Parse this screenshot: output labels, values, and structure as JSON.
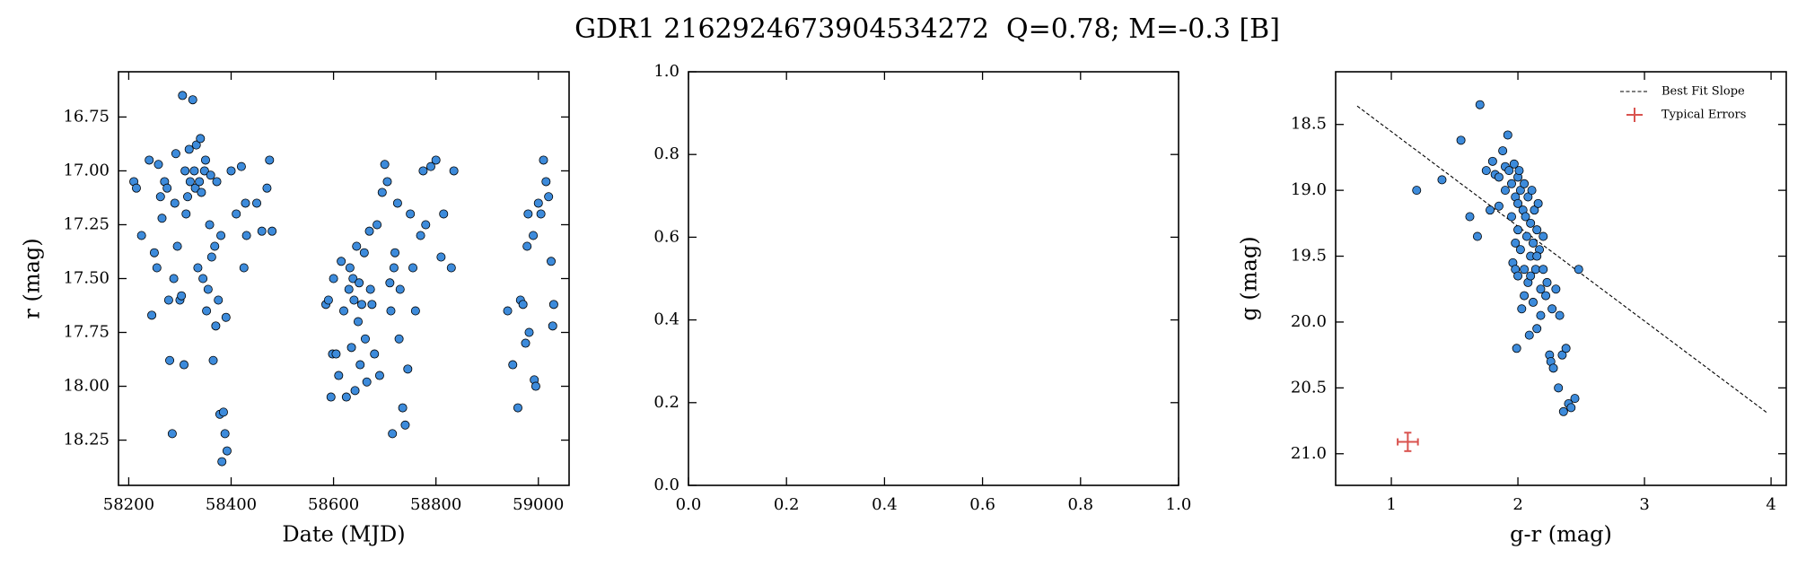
{
  "title": "GDR1 2162924673904534272  Q=0.78; M=-0.3 [B]",
  "chart_data": [
    {
      "type": "scatter",
      "xlabel": "Date (MJD)",
      "ylabel": "r (mag)",
      "color": "#3d8bdb",
      "xlim": [
        58180,
        59060
      ],
      "ylim": [
        18.46,
        16.54
      ],
      "xticks": [
        58200,
        58400,
        58600,
        58800,
        59000
      ],
      "yticks": [
        16.75,
        {
          "value": 17,
          "label": "17.00"
        },
        17.25,
        {
          "value": 17.5,
          "label": "17.50"
        },
        17.75,
        {
          "value": 18,
          "label": "18.00"
        },
        18.25
      ],
      "x": [
        58210,
        58215,
        58225,
        58240,
        58245,
        58250,
        58255,
        58258,
        58262,
        58265,
        58270,
        58275,
        58278,
        58280,
        58285,
        58288,
        58290,
        58292,
        58295,
        58300,
        58303,
        58305,
        58308,
        58310,
        58312,
        58315,
        58318,
        58320,
        58325,
        58328,
        58330,
        58332,
        58335,
        58338,
        58340,
        58342,
        58345,
        58348,
        58350,
        58352,
        58355,
        58358,
        58360,
        58362,
        58365,
        58368,
        58370,
        58372,
        58375,
        58378,
        58380,
        58382,
        58385,
        58388,
        58390,
        58392,
        58400,
        58410,
        58420,
        58425,
        58428,
        58430,
        58450,
        58460,
        58470,
        58475,
        58480,
        58585,
        58590,
        58595,
        58598,
        58600,
        58605,
        58610,
        58615,
        58620,
        58625,
        58630,
        58632,
        58635,
        58638,
        58640,
        58642,
        58645,
        58648,
        58650,
        58652,
        58655,
        58660,
        58662,
        58665,
        58670,
        58672,
        58675,
        58680,
        58685,
        58690,
        58695,
        58700,
        58705,
        58710,
        58712,
        58715,
        58718,
        58720,
        58725,
        58728,
        58730,
        58735,
        58740,
        58745,
        58750,
        58755,
        58760,
        58770,
        58775,
        58780,
        58790,
        58800,
        58810,
        58815,
        58830,
        58835,
        58940,
        58950,
        58960,
        58965,
        58970,
        58975,
        58978,
        58980,
        58982,
        58990,
        58992,
        58995,
        59000,
        59005,
        59010,
        59015,
        59020,
        59025,
        59028,
        59030
      ],
      "values": [
        17.05,
        17.08,
        17.3,
        16.95,
        17.67,
        17.38,
        17.45,
        16.97,
        17.12,
        17.22,
        17.05,
        17.08,
        17.6,
        17.88,
        18.22,
        17.5,
        17.15,
        16.92,
        17.35,
        17.6,
        17.58,
        16.65,
        17.9,
        17.0,
        17.2,
        17.12,
        16.9,
        17.05,
        16.67,
        17.0,
        17.08,
        16.88,
        17.45,
        17.05,
        16.85,
        17.1,
        17.5,
        17.0,
        16.95,
        17.65,
        17.55,
        17.25,
        17.02,
        17.4,
        17.88,
        17.35,
        17.72,
        17.05,
        17.6,
        18.13,
        17.3,
        18.35,
        18.12,
        18.22,
        17.68,
        18.3,
        17.0,
        17.2,
        16.98,
        17.45,
        17.15,
        17.3,
        17.15,
        17.28,
        17.08,
        16.95,
        17.28,
        17.62,
        17.6,
        18.05,
        17.85,
        17.5,
        17.85,
        17.95,
        17.42,
        17.65,
        18.05,
        17.55,
        17.45,
        17.82,
        17.5,
        17.6,
        18.02,
        17.35,
        17.7,
        17.52,
        17.9,
        17.62,
        17.38,
        17.78,
        17.98,
        17.28,
        17.55,
        17.62,
        17.85,
        17.25,
        17.95,
        17.1,
        16.97,
        17.05,
        17.52,
        17.65,
        18.22,
        17.45,
        17.38,
        17.15,
        17.78,
        17.55,
        18.1,
        18.18,
        17.92,
        17.2,
        17.45,
        17.65,
        17.3,
        17.0,
        17.25,
        16.98,
        16.95,
        17.4,
        17.2,
        17.45,
        17.0,
        17.65,
        17.9,
        18.1,
        17.6,
        17.62,
        17.8,
        17.35,
        17.2,
        17.75,
        17.3,
        17.97,
        18.0,
        17.15,
        17.2,
        16.95,
        17.05,
        17.12,
        17.42,
        17.72,
        17.62
      ]
    },
    {
      "type": "empty",
      "xlim": [
        0,
        1
      ],
      "ylim": [
        0,
        1
      ],
      "xticks": [
        {
          "value": 0,
          "label": "0.0"
        },
        0.2,
        0.4,
        0.6,
        0.8,
        {
          "value": 1,
          "label": "1.0"
        }
      ],
      "yticks": [
        {
          "value": 0,
          "label": "0.0"
        },
        0.2,
        0.4,
        0.6,
        0.8,
        {
          "value": 1,
          "label": "1.0"
        }
      ]
    },
    {
      "type": "scatter",
      "xlabel": "g-r (mag)",
      "ylabel": "g (mag)",
      "color": "#3d8bdb",
      "xlim": [
        0.56,
        4.12
      ],
      "ylim": [
        21.24,
        18.1
      ],
      "xticks": [
        1,
        2,
        3,
        4
      ],
      "yticks": [
        18.5,
        {
          "value": 19,
          "label": "19.0"
        },
        19.5,
        {
          "value": 20,
          "label": "20.0"
        },
        20.5,
        {
          "value": 21,
          "label": "21.0"
        }
      ],
      "x": [
        1.2,
        1.4,
        1.55,
        1.62,
        1.68,
        1.7,
        1.75,
        1.78,
        1.8,
        1.82,
        1.85,
        1.85,
        1.88,
        1.9,
        1.9,
        1.92,
        1.93,
        1.95,
        1.95,
        1.96,
        1.97,
        1.98,
        1.98,
        1.99,
        2.0,
        2.0,
        2.0,
        2.0,
        2.01,
        2.02,
        2.02,
        2.03,
        2.04,
        2.05,
        2.05,
        2.06,
        2.07,
        2.08,
        2.08,
        2.09,
        2.1,
        2.1,
        2.11,
        2.12,
        2.12,
        2.13,
        2.14,
        2.15,
        2.15,
        2.16,
        2.17,
        2.18,
        2.18,
        2.2,
        2.2,
        2.22,
        2.23,
        2.25,
        2.26,
        2.27,
        2.28,
        2.3,
        2.32,
        2.33,
        2.35,
        2.36,
        2.38,
        2.4,
        2.42,
        2.45,
        2.48,
        2.1,
        2.05,
        1.98,
        2.15
      ],
      "values": [
        19.0,
        18.92,
        18.62,
        19.2,
        19.35,
        18.35,
        18.85,
        19.15,
        18.78,
        18.88,
        18.9,
        19.12,
        18.7,
        18.82,
        19.0,
        18.58,
        18.85,
        18.95,
        19.2,
        19.55,
        18.8,
        19.05,
        19.6,
        20.2,
        18.9,
        19.1,
        19.3,
        19.65,
        18.85,
        19.0,
        19.45,
        19.9,
        19.15,
        18.95,
        19.6,
        19.2,
        19.35,
        19.05,
        19.7,
        20.1,
        19.25,
        19.5,
        19.0,
        19.4,
        19.85,
        19.15,
        19.6,
        19.3,
        20.05,
        19.1,
        19.45,
        19.75,
        19.95,
        19.35,
        19.6,
        19.8,
        19.7,
        20.25,
        20.3,
        19.9,
        20.35,
        19.75,
        20.5,
        19.95,
        20.25,
        20.68,
        20.2,
        20.62,
        20.65,
        20.58,
        19.6,
        19.65,
        19.8,
        19.4,
        19.5
      ],
      "fit_line": {
        "name": "Best Fit Slope",
        "color": "#000000",
        "x": [
          0.73,
          3.97
        ],
        "values": [
          18.36,
          20.69
        ]
      },
      "error_marker": {
        "name": "Typical Errors",
        "color": "#d9534f",
        "x": 1.13,
        "value": 20.91,
        "xerr": 0.08,
        "yerr": 0.07
      },
      "legend": "upper right"
    }
  ]
}
